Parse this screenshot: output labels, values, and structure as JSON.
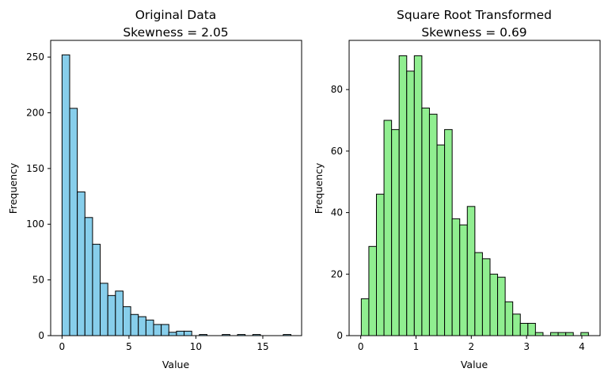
{
  "chart_data": [
    {
      "type": "bar",
      "title_line1": "Original Data",
      "title_line2": "Skewness = 2.05",
      "xlabel": "Value",
      "ylabel": "Frequency",
      "bar_color": "#87ceeb",
      "edge_color": "#000000",
      "xlim": [
        -0.85,
        17.9
      ],
      "ylim": [
        0,
        265
      ],
      "xticks": [
        0,
        5,
        10,
        15
      ],
      "yticks": [
        0,
        50,
        100,
        150,
        200,
        250
      ],
      "bin_start": 0.0,
      "bin_width": 0.57,
      "values": [
        252,
        204,
        129,
        106,
        82,
        47,
        36,
        40,
        26,
        19,
        17,
        14,
        10,
        10,
        3,
        4,
        4,
        0,
        1,
        0,
        0,
        1,
        0,
        1,
        0,
        1,
        0,
        0,
        0,
        1
      ]
    },
    {
      "type": "bar",
      "title_line1": "Square Root Transformed",
      "title_line2": "Skewness = 0.69",
      "xlabel": "Value",
      "ylabel": "Frequency",
      "bar_color": "#90ee90",
      "edge_color": "#000000",
      "xlim": [
        -0.21,
        4.33
      ],
      "ylim": [
        0,
        96
      ],
      "xticks": [
        0,
        1,
        2,
        3,
        4
      ],
      "yticks": [
        0,
        20,
        40,
        60,
        80
      ],
      "bin_start": 0.01,
      "bin_width": 0.137,
      "values": [
        12,
        29,
        46,
        70,
        67,
        91,
        86,
        91,
        74,
        72,
        62,
        67,
        38,
        36,
        42,
        27,
        25,
        20,
        19,
        11,
        7,
        4,
        4,
        1,
        0,
        1,
        1,
        1,
        0,
        1
      ]
    }
  ]
}
